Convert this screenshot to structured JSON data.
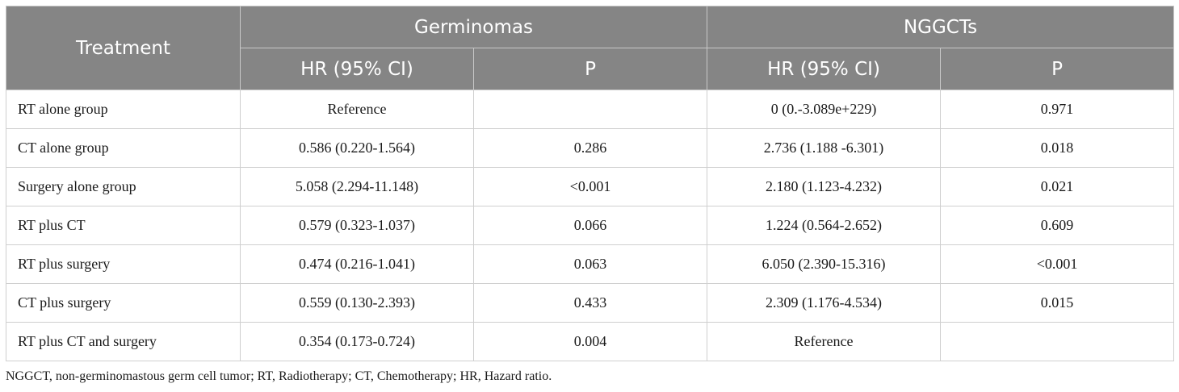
{
  "table": {
    "header": {
      "treatment": "Treatment",
      "group1": "Germinomas",
      "group2": "NGGCTs",
      "hr1": "HR (95% CI)",
      "p1": "P",
      "hr2": "HR (95% CI)",
      "p2": "P"
    },
    "rows": [
      {
        "treatment": "RT alone group",
        "g_hr": "Reference",
        "g_p": "",
        "n_hr": "0 (0.-3.089e+229)",
        "n_p": "0.971"
      },
      {
        "treatment": "CT alone group",
        "g_hr": "0.586 (0.220-1.564)",
        "g_p": "0.286",
        "n_hr": "2.736 (1.188 -6.301)",
        "n_p": "0.018"
      },
      {
        "treatment": "Surgery alone group",
        "g_hr": "5.058 (2.294-11.148)",
        "g_p": "<0.001",
        "n_hr": "2.180 (1.123-4.232)",
        "n_p": "0.021"
      },
      {
        "treatment": "RT plus CT",
        "g_hr": "0.579 (0.323-1.037)",
        "g_p": "0.066",
        "n_hr": "1.224 (0.564-2.652)",
        "n_p": "0.609"
      },
      {
        "treatment": "RT plus surgery",
        "g_hr": "0.474 (0.216-1.041)",
        "g_p": "0.063",
        "n_hr": "6.050 (2.390-15.316)",
        "n_p": "<0.001"
      },
      {
        "treatment": "CT plus surgery",
        "g_hr": "0.559 (0.130-2.393)",
        "g_p": "0.433",
        "n_hr": "2.309 (1.176-4.534)",
        "n_p": "0.015"
      },
      {
        "treatment": "RT plus CT and surgery",
        "g_hr": "0.354 (0.173-0.724)",
        "g_p": "0.004",
        "n_hr": "Reference",
        "n_p": ""
      }
    ]
  },
  "footnote": "NGGCT, non-germinomastous germ cell tumor; RT, Radiotherapy; CT, Chemotherapy; HR, Hazard ratio.",
  "colors": {
    "header_bg": "#858585",
    "header_text": "#ffffff",
    "border": "#cfcfcf"
  }
}
